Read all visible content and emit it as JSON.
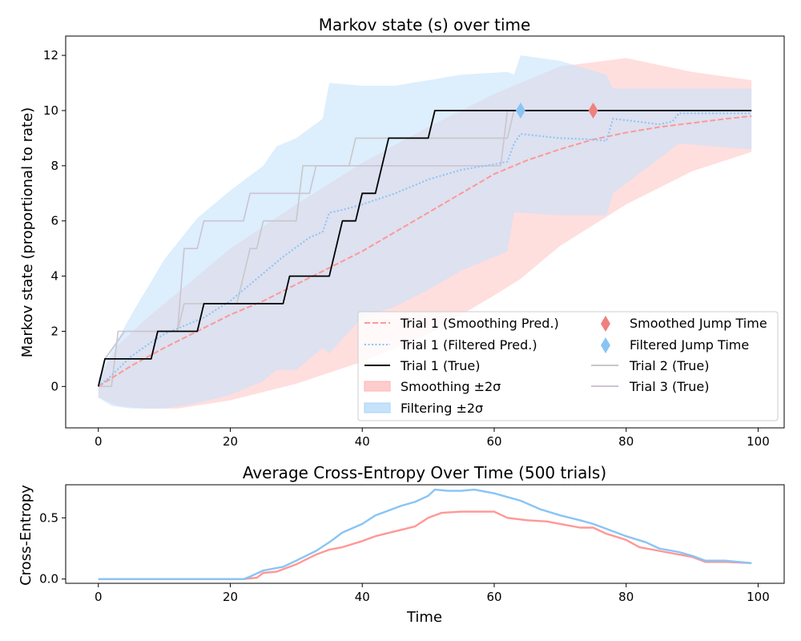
{
  "chart_data": [
    {
      "type": "line",
      "title": "Markov state (s) over time",
      "xlabel": "",
      "ylabel": "Markov state (proportional to rate)",
      "xlim": [
        -4.95,
        103.95
      ],
      "ylim": [
        -1.5,
        12.7
      ],
      "xticks": [
        "0",
        "20",
        "40",
        "60",
        "80",
        "100"
      ],
      "yticks": [
        "0",
        "2",
        "4",
        "6",
        "8",
        "10",
        "12"
      ],
      "grid": false,
      "legend_position": "lower-right",
      "colors": {
        "smoothing": "#ff9896",
        "filtering": "#89c4f4",
        "smoothing_band": "#ffcccc",
        "filtering_band": "#c6e2fb",
        "true": "#000000",
        "other_trials": "#c8c8c8"
      },
      "bands": [
        {
          "name": "Smoothing ±2σ",
          "x": [
            0,
            3,
            7,
            12,
            20,
            30,
            40,
            50,
            60,
            64,
            70,
            80,
            90,
            99
          ],
          "upper": [
            0.3,
            1.5,
            2.4,
            3.4,
            5.0,
            6.6,
            8.1,
            9.4,
            10.6,
            11.0,
            11.6,
            11.9,
            11.4,
            11.1
          ],
          "lower": [
            -0.4,
            -0.7,
            -0.8,
            -0.8,
            -0.5,
            0.1,
            0.9,
            1.9,
            3.3,
            3.9,
            5.1,
            6.6,
            7.8,
            8.5
          ]
        },
        {
          "name": "Filtering ±2σ",
          "x": [
            0,
            2,
            5,
            10,
            15,
            20,
            25,
            27,
            30,
            34,
            35,
            40,
            45,
            50,
            55,
            62,
            63,
            64,
            70,
            77,
            78,
            88,
            99
          ],
          "upper": [
            0.3,
            1.3,
            2.6,
            4.6,
            6.1,
            7.1,
            8.0,
            8.7,
            9.0,
            9.7,
            11.0,
            10.9,
            10.9,
            11.1,
            11.3,
            11.4,
            11.3,
            12.0,
            11.8,
            11.3,
            10.8,
            10.8,
            10.8
          ],
          "lower": [
            -0.4,
            -0.7,
            -0.8,
            -0.8,
            -0.6,
            -0.3,
            0.2,
            0.6,
            0.6,
            1.4,
            1.2,
            2.5,
            2.9,
            3.5,
            4.2,
            4.9,
            6.3,
            6.3,
            6.2,
            6.2,
            7.0,
            8.8,
            8.6
          ]
        }
      ],
      "series": [
        {
          "name": "Trial 1 (Smoothing Pred.)",
          "style": "dashed",
          "x": [
            0,
            5,
            10,
            15,
            20,
            25,
            30,
            35,
            40,
            45,
            50,
            55,
            60,
            65,
            70,
            75,
            80,
            85,
            90,
            95,
            99
          ],
          "values": [
            0,
            0.75,
            1.4,
            2.0,
            2.6,
            3.1,
            3.7,
            4.3,
            4.9,
            5.6,
            6.3,
            7.0,
            7.7,
            8.2,
            8.6,
            8.95,
            9.2,
            9.4,
            9.55,
            9.7,
            9.8
          ]
        },
        {
          "name": "Trial 1 (Filtered Pred.)",
          "style": "dotted",
          "x": [
            0,
            2,
            5,
            8,
            10,
            13,
            16,
            20,
            24,
            28,
            32,
            34,
            35,
            37,
            40,
            45,
            50,
            55,
            60,
            62,
            63,
            64,
            70,
            75,
            77,
            78,
            80,
            85,
            87,
            88,
            99
          ],
          "values": [
            0,
            0.4,
            1.1,
            1.6,
            1.9,
            2.2,
            2.5,
            3.1,
            3.9,
            4.7,
            5.4,
            5.6,
            6.3,
            6.4,
            6.6,
            7.0,
            7.5,
            7.85,
            8.05,
            8.15,
            8.8,
            9.15,
            9.0,
            8.95,
            8.9,
            9.7,
            9.65,
            9.5,
            9.6,
            9.9,
            9.9
          ]
        },
        {
          "name": "Trial 1 (True)",
          "style": "step",
          "x": [
            0,
            1,
            8,
            9,
            15,
            16,
            28,
            29,
            35,
            37,
            39,
            40,
            42,
            44,
            50,
            51,
            99
          ],
          "values": [
            0,
            1,
            1,
            2,
            2,
            3,
            3,
            4,
            4,
            6,
            6,
            7,
            7,
            9,
            9,
            10,
            10
          ]
        },
        {
          "name": "Trial 2 (True)",
          "style": "step",
          "x": [
            0,
            2,
            3,
            12,
            13,
            21,
            23,
            24,
            25,
            30,
            31,
            38,
            39,
            62,
            63,
            99
          ],
          "values": [
            0,
            0,
            2,
            2,
            3,
            3,
            5,
            5,
            6,
            6,
            8,
            8,
            9,
            9,
            10,
            10
          ]
        },
        {
          "name": "Trial 3 (True)",
          "style": "step",
          "x": [
            0,
            1,
            4,
            12,
            13,
            15,
            16,
            22,
            23,
            32,
            33,
            43,
            44,
            61,
            62,
            99
          ],
          "values": [
            0,
            1,
            2,
            2,
            5,
            5,
            6,
            6,
            7,
            7,
            8,
            8,
            8,
            8,
            10,
            10
          ]
        }
      ],
      "markers": [
        {
          "name": "Smoothed Jump Time",
          "x": 75,
          "y": 10,
          "shape": "diamond"
        },
        {
          "name": "Filtered Jump Time",
          "x": 64,
          "y": 10,
          "shape": "diamond"
        }
      ],
      "legend": [
        "Trial 1 (Smoothing Pred.)",
        "Trial 1 (Filtered Pred.)",
        "Trial 1 (True)",
        "Smoothing ±2σ",
        "Filtering ±2σ",
        "Smoothed Jump Time",
        "Filtered Jump Time",
        "Trial 2 (True)",
        "Trial 3 (True)"
      ]
    },
    {
      "type": "line",
      "title": "Average Cross-Entropy Over Time (500 trials)",
      "xlabel": "Time",
      "ylabel": "Cross-Entropy",
      "xlim": [
        -4.95,
        103.95
      ],
      "ylim": [
        -0.035,
        0.77
      ],
      "xticks": [
        "0",
        "20",
        "40",
        "60",
        "80",
        "100"
      ],
      "yticks": [
        "0.0",
        "0.5"
      ],
      "grid": false,
      "series": [
        {
          "color": "#ff9896",
          "x": [
            0,
            22,
            24,
            25,
            27,
            30,
            33,
            35,
            37,
            40,
            42,
            45,
            48,
            50,
            52,
            55,
            58,
            60,
            62,
            65,
            68,
            70,
            73,
            75,
            77,
            80,
            82,
            85,
            88,
            90,
            92,
            95,
            99
          ],
          "values": [
            0,
            0,
            0.01,
            0.05,
            0.06,
            0.12,
            0.2,
            0.24,
            0.26,
            0.31,
            0.35,
            0.39,
            0.43,
            0.5,
            0.54,
            0.55,
            0.55,
            0.55,
            0.5,
            0.48,
            0.47,
            0.45,
            0.42,
            0.42,
            0.37,
            0.32,
            0.26,
            0.23,
            0.2,
            0.18,
            0.14,
            0.14,
            0.13
          ]
        },
        {
          "color": "#89c4f4",
          "x": [
            0,
            22,
            23,
            25,
            28,
            30,
            33,
            35,
            37,
            40,
            42,
            44,
            46,
            48,
            50,
            51,
            53,
            55,
            57,
            60,
            62,
            64,
            67,
            70,
            73,
            75,
            77,
            80,
            83,
            85,
            88,
            90,
            92,
            95,
            99
          ],
          "values": [
            0,
            0,
            0.02,
            0.07,
            0.1,
            0.15,
            0.23,
            0.3,
            0.38,
            0.45,
            0.52,
            0.56,
            0.6,
            0.63,
            0.68,
            0.73,
            0.72,
            0.72,
            0.73,
            0.7,
            0.67,
            0.64,
            0.57,
            0.52,
            0.48,
            0.45,
            0.41,
            0.35,
            0.3,
            0.25,
            0.22,
            0.19,
            0.15,
            0.15,
            0.13
          ]
        }
      ]
    }
  ]
}
